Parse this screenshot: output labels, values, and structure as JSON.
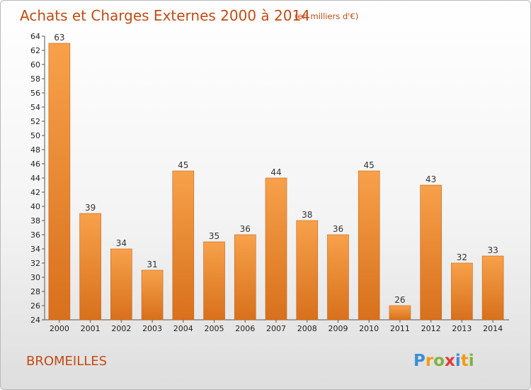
{
  "chart_data": {
    "type": "bar",
    "title": "Achats et Charges Externes 2000 à 2014",
    "subtitle": "(en milliers d'€)",
    "categories": [
      "2000",
      "2001",
      "2002",
      "2003",
      "2004",
      "2005",
      "2006",
      "2007",
      "2008",
      "2009",
      "2010",
      "2011",
      "2012",
      "2013",
      "2014"
    ],
    "values": [
      63,
      39,
      34,
      31,
      45,
      35,
      36,
      44,
      38,
      36,
      45,
      26,
      43,
      32,
      33
    ],
    "ylim": [
      24,
      64
    ],
    "ytick_step": 2,
    "grid": false,
    "legend": "none",
    "bar_color": "#f0882c"
  },
  "commune": "BROMEILLES",
  "logo": {
    "letters": [
      "P",
      "r",
      "o",
      "x",
      "i",
      "t",
      "i"
    ],
    "colors": [
      "#3a8ed8",
      "#f39c12",
      "#7cb342",
      "#e53935",
      "#3a8ed8",
      "#f39c12",
      "#7cb342"
    ]
  }
}
